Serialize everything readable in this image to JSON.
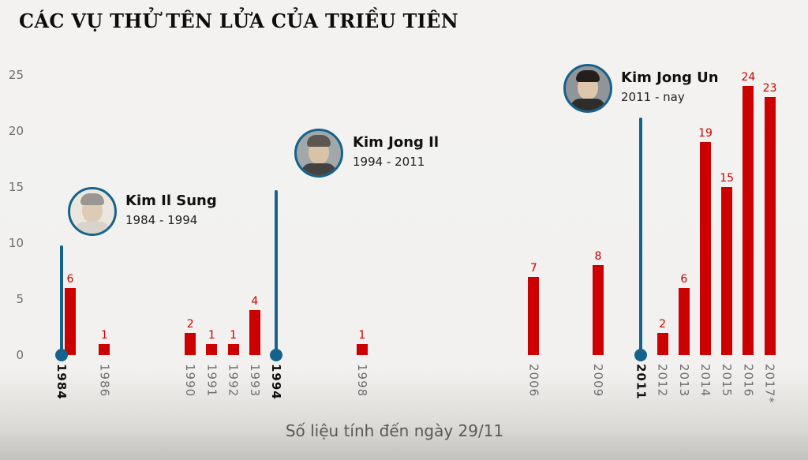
{
  "title": "CÁC VỤ THỬ TÊN LỬA CỦA TRIỀU TIÊN",
  "footer": {
    "note": "Số liệu tính đến ngày 29/11"
  },
  "colors": {
    "bar": "#cc0000",
    "value_label": "#cc0000",
    "leader_blue": "#15638d",
    "axis_text": "#6e6e6e",
    "axis_text_emphasis": "#0f0f0f",
    "title_text": "#0d0d0d",
    "footer_text": "#585858",
    "background_top": "#f3f2f0",
    "background_bottom": "#c3c2bf"
  },
  "chart_data": {
    "type": "bar",
    "title": "CÁC VỤ THỬ TÊN LỬA CỦA TRIỀU TIÊN",
    "categories": [
      "1984",
      "1986",
      "1990",
      "1991",
      "1992",
      "1993",
      "1998",
      "2006",
      "2009",
      "2012",
      "2013",
      "2014",
      "2015",
      "2016",
      "2017*"
    ],
    "years": [
      1984,
      1986,
      1990,
      1991,
      1992,
      1993,
      1998,
      2006,
      2009,
      2012,
      2013,
      2014,
      2015,
      2016,
      2017
    ],
    "values": [
      6,
      1,
      2,
      1,
      1,
      4,
      1,
      7,
      8,
      2,
      6,
      19,
      15,
      24,
      23
    ],
    "axis_years": [
      {
        "label": "1984",
        "year": 1984
      },
      {
        "label": "1986",
        "year": 1986
      },
      {
        "label": "1990",
        "year": 1990
      },
      {
        "label": "1991",
        "year": 1991
      },
      {
        "label": "1992",
        "year": 1992
      },
      {
        "label": "1993",
        "year": 1993
      },
      {
        "label": "1994",
        "year": 1994
      },
      {
        "label": "1998",
        "year": 1998
      },
      {
        "label": "2006",
        "year": 2006
      },
      {
        "label": "2009",
        "year": 2009
      },
      {
        "label": "2011",
        "year": 2011
      },
      {
        "label": "2012",
        "year": 2012
      },
      {
        "label": "2013",
        "year": 2013
      },
      {
        "label": "2014",
        "year": 2014
      },
      {
        "label": "2015",
        "year": 2015
      },
      {
        "label": "2016",
        "year": 2016
      },
      {
        "label": "2017*",
        "year": 2017
      }
    ],
    "emphasized_years": [
      1984,
      1994,
      2011
    ],
    "yticks": [
      0,
      5,
      10,
      15,
      20,
      25
    ],
    "ylim": [
      0,
      25
    ],
    "grid": false,
    "legend": "none",
    "bar_color": "#cc0000",
    "leaders": [
      {
        "name": "Kim Il Sung",
        "period": "1984 - 1994",
        "start_year": 1984
      },
      {
        "name": "Kim Jong Il",
        "period": "1994 - 2011",
        "start_year": 1994
      },
      {
        "name": "Kim Jong Un",
        "period": "2011 - nay",
        "start_year": 2011
      }
    ],
    "footnote": "Số liệu tính đến ngày 29/11"
  }
}
